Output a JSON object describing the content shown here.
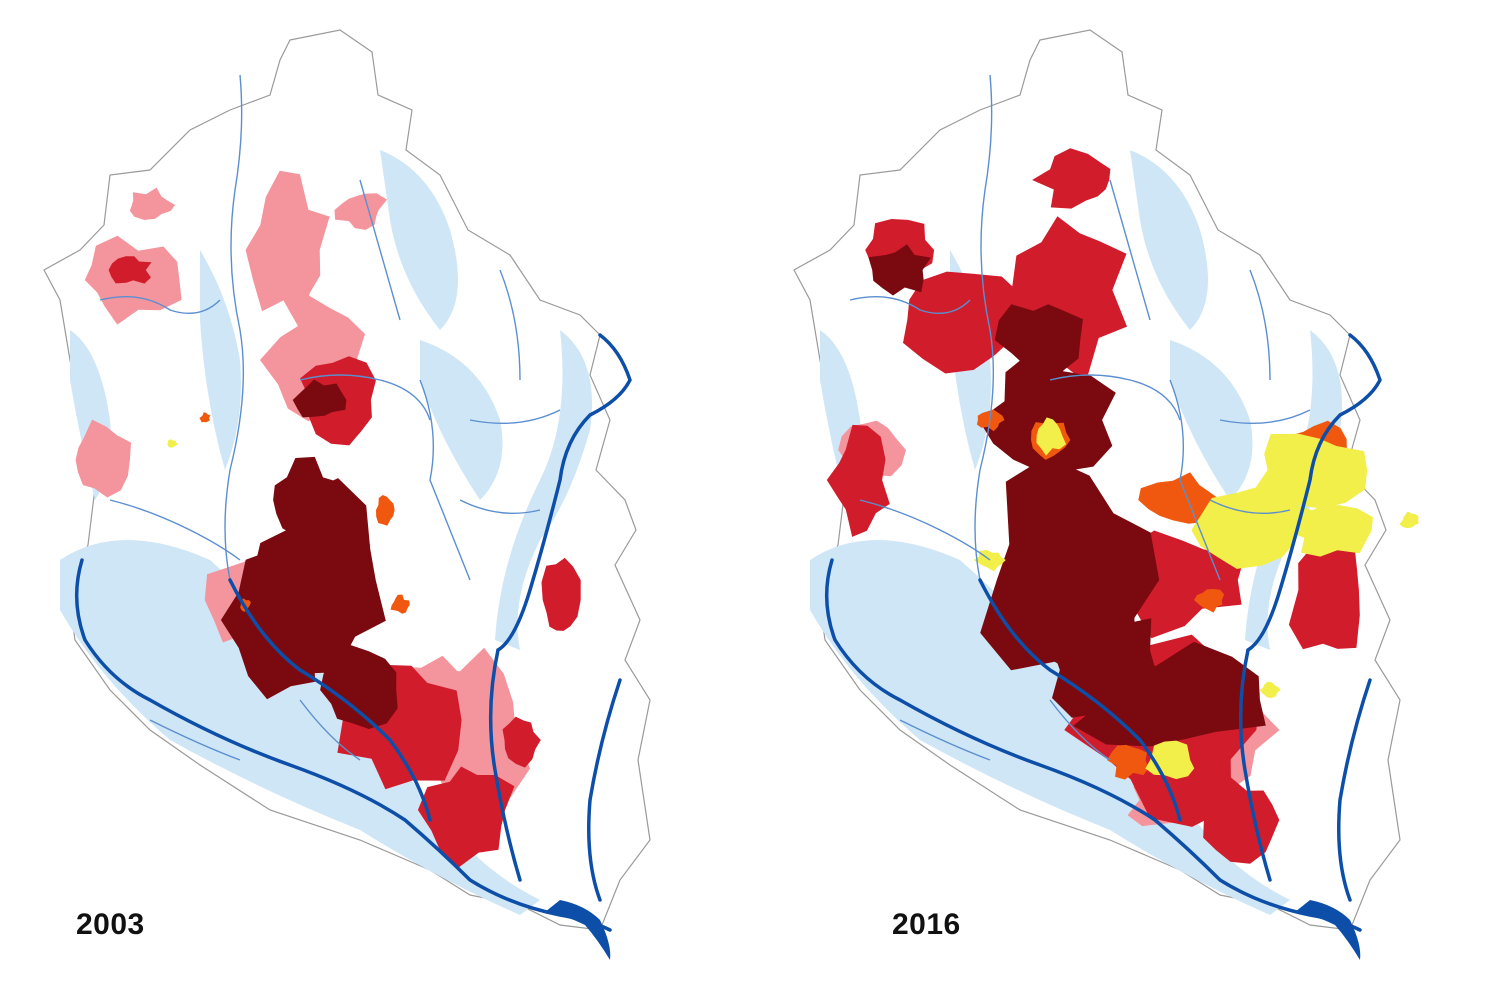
{
  "maps": [
    {
      "id": "left",
      "year": "2003"
    },
    {
      "id": "right",
      "year": "2016"
    }
  ],
  "colors": {
    "background": "#ffffff",
    "boundary": "#9a9a9a",
    "floodplain": "#cfe6f7",
    "river_main": "#0d4fa8",
    "river_minor": "#5b8fd0",
    "urban_very_high": "#7a0a0f",
    "urban_high": "#d11c2c",
    "urban_low": "#f4949c",
    "industrial": "#f0580f",
    "new_development": "#f2ee4a"
  }
}
